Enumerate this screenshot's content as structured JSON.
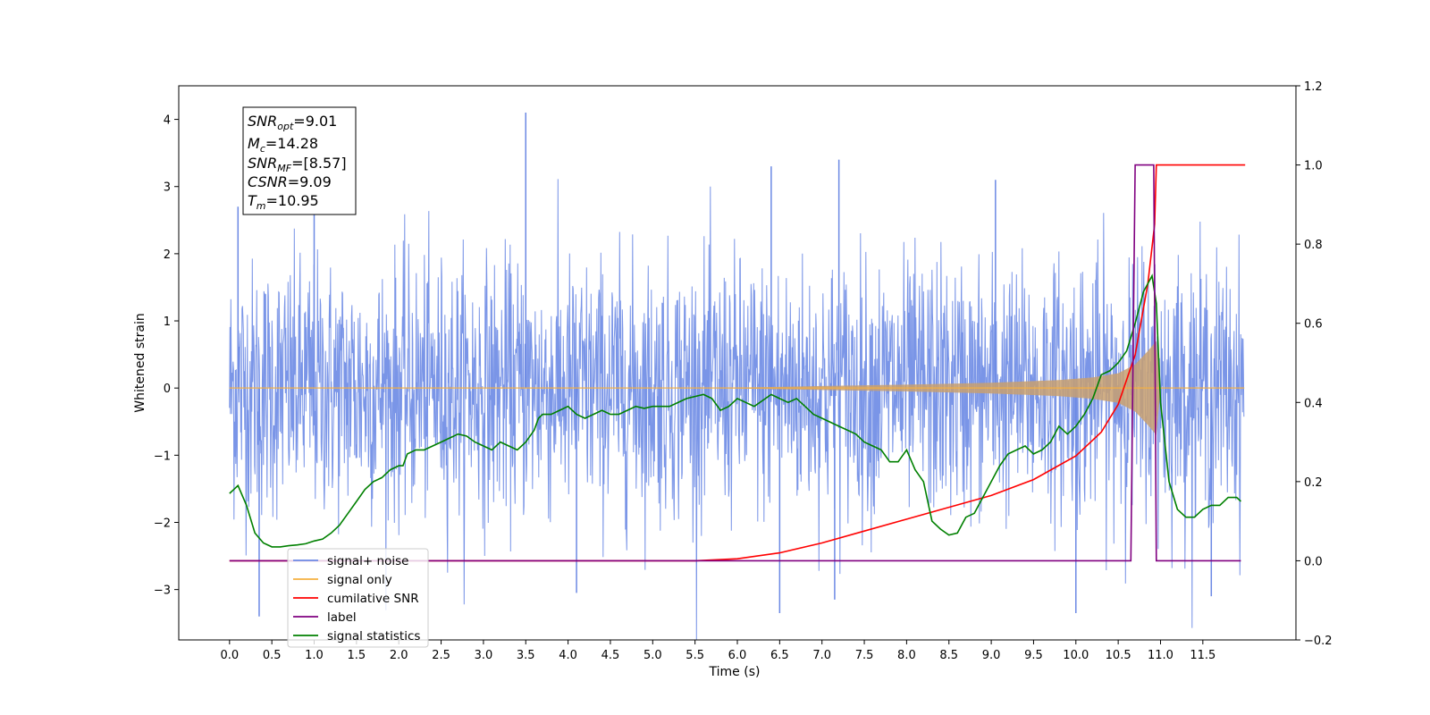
{
  "chart_data": {
    "type": "line",
    "title": "",
    "xlabel": "Time (s)",
    "ylabel": "Whitened strain",
    "y2label": "",
    "xlim": [
      -0.6,
      12.6
    ],
    "ylim": [
      -3.75,
      4.5
    ],
    "y2lim": [
      -0.2,
      1.2
    ],
    "x_ticks": [
      "0.0",
      "0.5",
      "1.0",
      "1.5",
      "2.0",
      "2.5",
      "3.0",
      "3.5",
      "4.0",
      "4.5",
      "5.0",
      "5.5",
      "6.0",
      "6.5",
      "7.0",
      "7.5",
      "8.0",
      "8.5",
      "9.0",
      "9.5",
      "10.0",
      "10.5",
      "11.0",
      "11.5"
    ],
    "y_ticks": [
      "−3",
      "−2",
      "−1",
      "0",
      "1",
      "2",
      "3",
      "4"
    ],
    "y2_ticks": [
      "−0.2",
      "0.0",
      "0.2",
      "0.4",
      "0.6",
      "0.8",
      "1.0",
      "1.2"
    ],
    "grid": false,
    "legend_position": "lower-left",
    "annotation": {
      "snr_opt": "=9.01",
      "mc": "=14.28",
      "snr_mf": "=[8.57]",
      "csnr": "=9.09",
      "tm": "=10.95"
    },
    "series": [
      {
        "name": "signal+ noise",
        "axis": "left",
        "color": "#6c89e4",
        "style": "noise band",
        "typical_range": [
          -1.7,
          1.7
        ],
        "peak_values": [
          [
            0.1,
            2.7
          ],
          [
            1.0,
            2.6
          ],
          [
            3.5,
            4.1
          ],
          [
            6.4,
            3.3
          ],
          [
            7.2,
            3.4
          ],
          [
            9.05,
            3.1
          ],
          [
            0.35,
            -3.4
          ],
          [
            6.5,
            -3.35
          ],
          [
            10.0,
            -3.35
          ],
          [
            7.15,
            -3.15
          ],
          [
            11.6,
            -3.1
          ],
          [
            4.1,
            -3.05
          ]
        ]
      },
      {
        "name": "signal only",
        "axis": "left",
        "color": "#f5b041",
        "style": "chirp",
        "x": [
          0,
          5.8,
          7.0,
          8.0,
          9.0,
          9.8,
          10.2,
          10.5,
          10.7,
          10.85,
          10.95,
          11.0,
          11.1,
          12.0
        ],
        "amplitude": [
          0.0,
          0.0,
          0.03,
          0.05,
          0.08,
          0.12,
          0.16,
          0.22,
          0.35,
          0.55,
          0.7,
          0.0,
          0.0,
          0.0
        ]
      },
      {
        "name": "cumilative SNR",
        "axis": "right",
        "color": "#ff0000",
        "x": [
          0,
          5.5,
          6.0,
          6.5,
          7.0,
          7.5,
          8.0,
          8.5,
          9.0,
          9.5,
          10.0,
          10.3,
          10.5,
          10.7,
          10.85,
          10.93,
          10.95,
          11.0,
          11.5,
          12.0
        ],
        "values": [
          0.0,
          0.0,
          0.005,
          0.02,
          0.045,
          0.075,
          0.105,
          0.135,
          0.165,
          0.205,
          0.265,
          0.325,
          0.395,
          0.52,
          0.7,
          0.85,
          1.0,
          1.0,
          1.0,
          1.0
        ]
      },
      {
        "name": "label",
        "axis": "right",
        "color": "#800080",
        "x": [
          0,
          10.65,
          10.7,
          10.92,
          10.95,
          11.0,
          11.95
        ],
        "values": [
          0,
          0,
          1,
          1,
          0,
          0,
          0
        ]
      },
      {
        "name": "signal statistics",
        "axis": "right",
        "color": "#008000",
        "x": [
          0.0,
          0.05,
          0.1,
          0.2,
          0.3,
          0.4,
          0.5,
          0.6,
          0.7,
          0.8,
          0.9,
          1.0,
          1.1,
          1.2,
          1.3,
          1.4,
          1.5,
          1.6,
          1.7,
          1.8,
          1.9,
          2.0,
          2.05,
          2.1,
          2.2,
          2.3,
          2.4,
          2.5,
          2.6,
          2.7,
          2.8,
          2.9,
          3.0,
          3.1,
          3.2,
          3.3,
          3.4,
          3.5,
          3.6,
          3.65,
          3.7,
          3.8,
          3.9,
          4.0,
          4.1,
          4.2,
          4.3,
          4.4,
          4.5,
          4.6,
          4.7,
          4.8,
          4.9,
          5.0,
          5.2,
          5.4,
          5.6,
          5.7,
          5.8,
          5.9,
          6.0,
          6.2,
          6.4,
          6.5,
          6.6,
          6.7,
          6.8,
          6.9,
          7.0,
          7.2,
          7.4,
          7.5,
          7.6,
          7.7,
          7.8,
          7.9,
          8.0,
          8.1,
          8.2,
          8.3,
          8.4,
          8.5,
          8.6,
          8.7,
          8.8,
          8.9,
          9.0,
          9.1,
          9.2,
          9.3,
          9.4,
          9.5,
          9.6,
          9.7,
          9.8,
          9.9,
          10.0,
          10.1,
          10.2,
          10.3,
          10.4,
          10.5,
          10.6,
          10.7,
          10.8,
          10.9,
          10.95,
          11.0,
          11.1,
          11.2,
          11.3,
          11.4,
          11.5,
          11.6,
          11.7,
          11.8,
          11.9,
          11.95
        ],
        "values": [
          0.17,
          0.18,
          0.19,
          0.14,
          0.07,
          0.045,
          0.035,
          0.035,
          0.038,
          0.04,
          0.043,
          0.05,
          0.055,
          0.07,
          0.09,
          0.12,
          0.15,
          0.18,
          0.2,
          0.21,
          0.23,
          0.24,
          0.24,
          0.27,
          0.28,
          0.28,
          0.29,
          0.3,
          0.31,
          0.32,
          0.315,
          0.3,
          0.29,
          0.28,
          0.3,
          0.29,
          0.28,
          0.3,
          0.33,
          0.36,
          0.37,
          0.37,
          0.38,
          0.39,
          0.37,
          0.36,
          0.37,
          0.38,
          0.37,
          0.37,
          0.38,
          0.39,
          0.385,
          0.39,
          0.39,
          0.41,
          0.42,
          0.41,
          0.38,
          0.39,
          0.41,
          0.39,
          0.42,
          0.41,
          0.4,
          0.41,
          0.39,
          0.37,
          0.36,
          0.34,
          0.32,
          0.3,
          0.29,
          0.28,
          0.25,
          0.25,
          0.28,
          0.23,
          0.2,
          0.1,
          0.08,
          0.065,
          0.07,
          0.11,
          0.12,
          0.16,
          0.2,
          0.24,
          0.27,
          0.28,
          0.29,
          0.27,
          0.28,
          0.3,
          0.34,
          0.32,
          0.34,
          0.37,
          0.41,
          0.47,
          0.48,
          0.5,
          0.53,
          0.6,
          0.68,
          0.72,
          0.65,
          0.4,
          0.2,
          0.13,
          0.11,
          0.11,
          0.13,
          0.14,
          0.14,
          0.16,
          0.16,
          0.15
        ]
      }
    ]
  }
}
